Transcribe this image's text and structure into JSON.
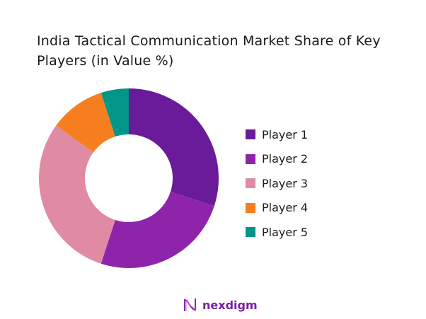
{
  "chart_data": {
    "type": "pie",
    "title": "India Tactical Communication Market Share of Key Players (in Value %)",
    "donut": true,
    "legend_position": "right",
    "slices": [
      {
        "label": "Player 1",
        "value": 30,
        "color": "#6a1b9a"
      },
      {
        "label": "Player 2",
        "value": 25,
        "color": "#8e24aa"
      },
      {
        "label": "Player 3",
        "value": 30,
        "color": "#e08aa4"
      },
      {
        "label": "Player 4",
        "value": 10,
        "color": "#f57f20"
      },
      {
        "label": "Player 5",
        "value": 5,
        "color": "#009688"
      }
    ]
  },
  "brand": {
    "name": "nexdigm",
    "color": "#7b1fa2"
  }
}
